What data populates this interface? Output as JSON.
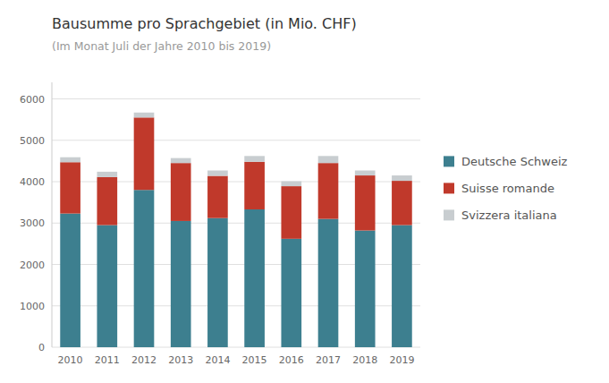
{
  "chart_data": {
    "type": "bar",
    "title": "Bausumme pro Sprachgebiet (in Mio. CHF)",
    "subtitle": "(Im Monat Juli der Jahre 2010 bis 2019)",
    "categories": [
      "2010",
      "2011",
      "2012",
      "2013",
      "2014",
      "2015",
      "2016",
      "2017",
      "2018",
      "2019"
    ],
    "series": [
      {
        "name": "Deutsche Schweiz",
        "color": "#3d7f8f",
        "values": [
          3230,
          2950,
          3800,
          3050,
          3120,
          3330,
          2620,
          3100,
          2820,
          2950
        ]
      },
      {
        "name": "Suisse romande",
        "color": "#c0392b",
        "values": [
          1240,
          1160,
          1750,
          1400,
          1020,
          1150,
          1270,
          1350,
          1330,
          1070
        ]
      },
      {
        "name": "Svizzera italiana",
        "color": "#c8cdd0",
        "values": [
          120,
          130,
          120,
          120,
          130,
          140,
          120,
          170,
          120,
          130
        ]
      }
    ],
    "ylim": [
      0,
      6400
    ],
    "yticks": [
      0,
      1000,
      2000,
      3000,
      4000,
      5000,
      6000
    ],
    "grid": true,
    "stacked": true,
    "legend": "right"
  }
}
